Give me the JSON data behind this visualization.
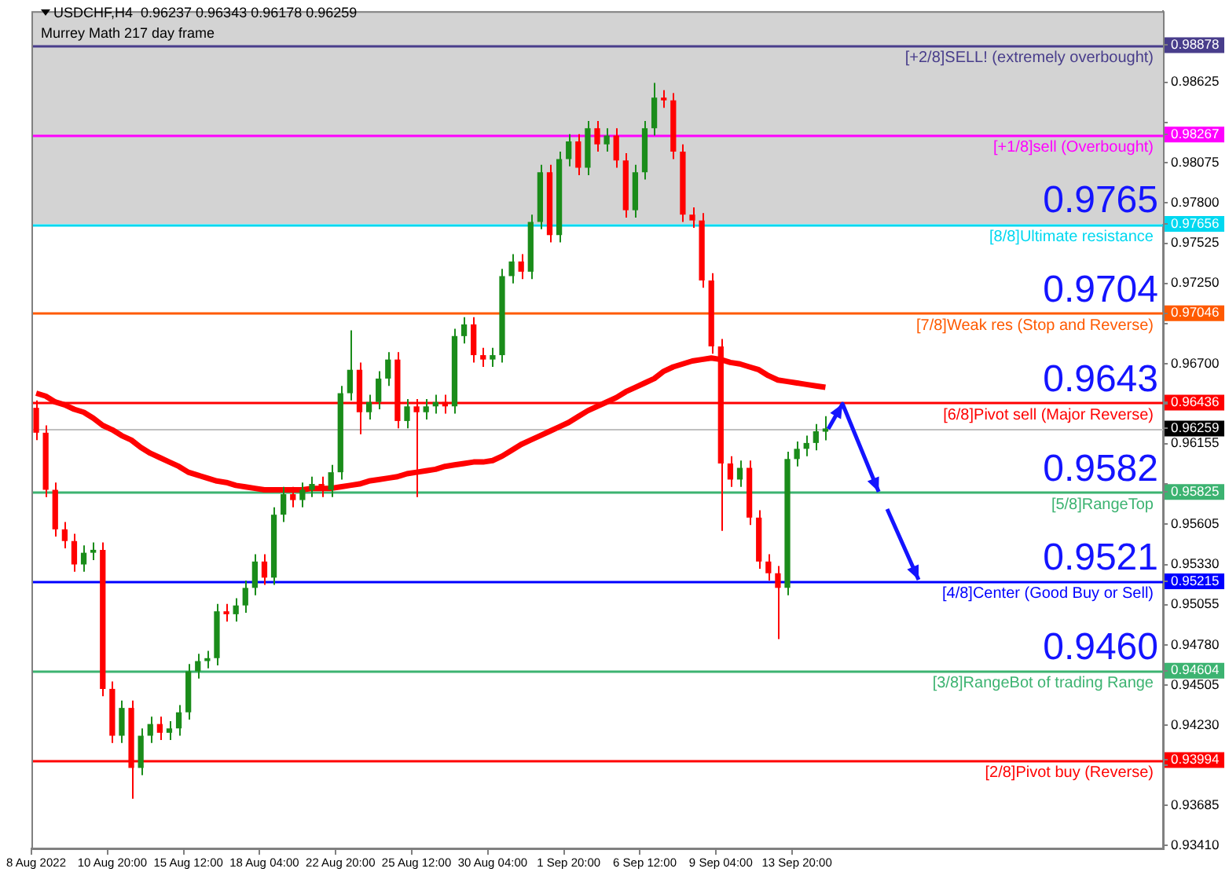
{
  "chart_data": {
    "type": "candlestick",
    "title": "USDCHF,H4  0.96237 0.96343 0.96178 0.96259",
    "subtitle": "Murrey Math 217 day frame",
    "categories": [
      "8 Aug 2022",
      null,
      null,
      null,
      null,
      null,
      null,
      null,
      "10 Aug 20:00",
      null,
      null,
      null,
      null,
      null,
      null,
      null,
      "15 Aug 12:00",
      null,
      null,
      null,
      null,
      null,
      null,
      null,
      "18 Aug 04:00",
      null,
      null,
      null,
      null,
      null,
      null,
      null,
      "22 Aug 20:00",
      null,
      null,
      null,
      null,
      null,
      null,
      null,
      "25 Aug 12:00",
      null,
      null,
      null,
      null,
      null,
      null,
      null,
      "30 Aug 04:00",
      null,
      null,
      null,
      null,
      null,
      null,
      null,
      "1 Sep 20:00",
      null,
      null,
      null,
      null,
      null,
      null,
      null,
      "6 Sep 12:00",
      null,
      null,
      null,
      null,
      null,
      null,
      null,
      "9 Sep 04:00",
      null,
      null,
      null,
      null,
      null,
      null,
      null,
      "13 Sep 20:00",
      null,
      null,
      null,
      null,
      null,
      null,
      null,
      null,
      null,
      null,
      null,
      null,
      null,
      null,
      null,
      null,
      null,
      null,
      null,
      null,
      null,
      null,
      null,
      null,
      null,
      null,
      null,
      null,
      null,
      null,
      null,
      null,
      null,
      null,
      null,
      null,
      null,
      null
    ],
    "ohlc": [
      [
        0.964,
        0.9645,
        0.9618,
        0.9623
      ],
      [
        0.9623,
        0.9628,
        0.9579,
        0.9584
      ],
      [
        0.9584,
        0.9589,
        0.9552,
        0.9557
      ],
      [
        0.9557,
        0.9562,
        0.9544,
        0.9549
      ],
      [
        0.9549,
        0.9554,
        0.9528,
        0.9533
      ],
      [
        0.9533,
        0.9546,
        0.9528,
        0.9541
      ],
      [
        0.9541,
        0.9548,
        0.9536,
        0.9543
      ],
      [
        0.9543,
        0.9548,
        0.9443,
        0.9448
      ],
      [
        0.9448,
        0.9453,
        0.9411,
        0.9416
      ],
      [
        0.9416,
        0.944,
        0.9411,
        0.9435
      ],
      [
        0.9435,
        0.944,
        0.9373,
        0.9394
      ],
      [
        0.9394,
        0.9421,
        0.9389,
        0.9416
      ],
      [
        0.9416,
        0.9429,
        0.9411,
        0.9424
      ],
      [
        0.9424,
        0.9429,
        0.9413,
        0.9418
      ],
      [
        0.9418,
        0.9426,
        0.9413,
        0.9421
      ],
      [
        0.9421,
        0.9437,
        0.9416,
        0.9432
      ],
      [
        0.9432,
        0.9465,
        0.9427,
        0.946
      ],
      [
        0.946,
        0.9472,
        0.9455,
        0.9467
      ],
      [
        0.9467,
        0.9474,
        0.9462,
        0.9469
      ],
      [
        0.9469,
        0.9506,
        0.9464,
        0.9501
      ],
      [
        0.9501,
        0.9506,
        0.9494,
        0.9499
      ],
      [
        0.9499,
        0.951,
        0.9494,
        0.9505
      ],
      [
        0.9505,
        0.9522,
        0.95,
        0.9517
      ],
      [
        0.9517,
        0.954,
        0.9512,
        0.9535
      ],
      [
        0.9535,
        0.954,
        0.9519,
        0.9524
      ],
      [
        0.9524,
        0.9572,
        0.9519,
        0.9567
      ],
      [
        0.9567,
        0.9586,
        0.9562,
        0.9581
      ],
      [
        0.9581,
        0.9586,
        0.9572,
        0.9577
      ],
      [
        0.9577,
        0.9589,
        0.9572,
        0.9584
      ],
      [
        0.9584,
        0.9593,
        0.9579,
        0.9588
      ],
      [
        0.9588,
        0.9593,
        0.9579,
        0.9584
      ],
      [
        0.9584,
        0.9601,
        0.9579,
        0.9596
      ],
      [
        0.9596,
        0.9655,
        0.9591,
        0.965
      ],
      [
        0.965,
        0.9693,
        0.9645,
        0.9666
      ],
      [
        0.9666,
        0.9671,
        0.9622,
        0.9637
      ],
      [
        0.9637,
        0.9649,
        0.9632,
        0.9644
      ],
      [
        0.9644,
        0.9665,
        0.9639,
        0.966
      ],
      [
        0.966,
        0.9678,
        0.9655,
        0.9673
      ],
      [
        0.9673,
        0.9678,
        0.9626,
        0.9631
      ],
      [
        0.9631,
        0.9646,
        0.9626,
        0.9641
      ],
      [
        0.9641,
        0.9646,
        0.9579,
        0.9637
      ],
      [
        0.9637,
        0.9646,
        0.9632,
        0.9641
      ],
      [
        0.9641,
        0.9649,
        0.9636,
        0.9644
      ],
      [
        0.9644,
        0.9649,
        0.9636,
        0.9641
      ],
      [
        0.9641,
        0.9694,
        0.9636,
        0.9689
      ],
      [
        0.9689,
        0.9702,
        0.9684,
        0.9697
      ],
      [
        0.9697,
        0.9702,
        0.9671,
        0.9676
      ],
      [
        0.9676,
        0.9681,
        0.9668,
        0.9673
      ],
      [
        0.9673,
        0.9681,
        0.9668,
        0.9676
      ],
      [
        0.9676,
        0.9735,
        0.9671,
        0.973
      ],
      [
        0.973,
        0.9745,
        0.9725,
        0.974
      ],
      [
        0.974,
        0.9745,
        0.9728,
        0.9733
      ],
      [
        0.9733,
        0.9772,
        0.9728,
        0.9767
      ],
      [
        0.9767,
        0.9806,
        0.9762,
        0.9801
      ],
      [
        0.9801,
        0.9806,
        0.9753,
        0.9758
      ],
      [
        0.9758,
        0.9815,
        0.9753,
        0.981
      ],
      [
        0.981,
        0.9827,
        0.9805,
        0.9822
      ],
      [
        0.9822,
        0.9827,
        0.9799,
        0.9804
      ],
      [
        0.9804,
        0.9836,
        0.9799,
        0.9831
      ],
      [
        0.9831,
        0.9836,
        0.9815,
        0.982
      ],
      [
        0.982,
        0.9831,
        0.9815,
        0.9826
      ],
      [
        0.9826,
        0.9831,
        0.9804,
        0.9809
      ],
      [
        0.9809,
        0.9814,
        0.977,
        0.9775
      ],
      [
        0.9775,
        0.9806,
        0.977,
        0.9801
      ],
      [
        0.9801,
        0.9836,
        0.9796,
        0.9831
      ],
      [
        0.9831,
        0.9862,
        0.9826,
        0.9852
      ],
      [
        0.9852,
        0.9857,
        0.9845,
        0.985
      ],
      [
        0.985,
        0.9855,
        0.981,
        0.9815
      ],
      [
        0.9815,
        0.982,
        0.9767,
        0.9772
      ],
      [
        0.9772,
        0.9777,
        0.9763,
        0.9768
      ],
      [
        0.9768,
        0.9773,
        0.9722,
        0.9727
      ],
      [
        0.9727,
        0.9732,
        0.9677,
        0.9682
      ],
      [
        0.9682,
        0.9687,
        0.9556,
        0.9602
      ],
      [
        0.9602,
        0.9607,
        0.9586,
        0.9591
      ],
      [
        0.9591,
        0.9604,
        0.9586,
        0.9599
      ],
      [
        0.9599,
        0.9604,
        0.956,
        0.9565
      ],
      [
        0.9565,
        0.957,
        0.953,
        0.9535
      ],
      [
        0.9535,
        0.954,
        0.9522,
        0.9527
      ],
      [
        0.9527,
        0.9532,
        0.9482,
        0.9517
      ],
      [
        0.9517,
        0.961,
        0.9512,
        0.9605
      ],
      [
        0.9605,
        0.9617,
        0.96,
        0.9612
      ],
      [
        0.9612,
        0.9621,
        0.9607,
        0.9616
      ],
      [
        0.9616,
        0.9629,
        0.9611,
        0.9624
      ],
      [
        0.96237,
        0.96343,
        0.96178,
        0.96259
      ],
      null,
      null,
      null,
      null,
      null,
      null,
      null,
      null,
      null,
      null,
      null,
      null,
      null,
      null,
      null,
      null,
      null,
      null,
      null,
      null,
      null,
      null,
      null,
      null,
      null,
      null,
      null,
      null,
      null,
      null,
      null,
      null,
      null,
      null,
      null
    ],
    "colors": [
      "#ff0000",
      "#ff0000",
      "#ff0000",
      "#ff0000",
      "#ff0000",
      "#1a8c1a",
      "#1a8c1a",
      "#ff0000",
      "#ff0000",
      "#1a8c1a",
      "#ff0000",
      "#1a8c1a",
      "#1a8c1a",
      "#ff0000",
      "#1a8c1a",
      "#1a8c1a",
      "#1a8c1a",
      "#1a8c1a",
      "#1a8c1a",
      "#1a8c1a",
      "#ff0000",
      "#1a8c1a",
      "#1a8c1a",
      "#1a8c1a",
      "#ff0000",
      "#1a8c1a",
      "#1a8c1a",
      "#ff0000",
      "#1a8c1a",
      "#1a8c1a",
      "#ff0000",
      "#1a8c1a",
      "#1a8c1a",
      "#1a8c1a",
      "#ff0000",
      "#1a8c1a",
      "#1a8c1a",
      "#1a8c1a",
      "#ff0000",
      "#1a8c1a",
      "#ff0000",
      "#1a8c1a",
      "#1a8c1a",
      "#ff0000",
      "#1a8c1a",
      "#1a8c1a",
      "#ff0000",
      "#ff0000",
      "#1a8c1a",
      "#1a8c1a",
      "#1a8c1a",
      "#ff0000",
      "#1a8c1a",
      "#1a8c1a",
      "#ff0000",
      "#1a8c1a",
      "#1a8c1a",
      "#ff0000",
      "#1a8c1a",
      "#ff0000",
      "#1a8c1a",
      "#ff0000",
      "#ff0000",
      "#1a8c1a",
      "#1a8c1a",
      "#1a8c1a",
      "#ff0000",
      "#ff0000",
      "#ff0000",
      "#ff0000",
      "#ff0000",
      "#ff0000",
      "#ff0000",
      "#ff0000",
      "#1a8c1a",
      "#ff0000",
      "#ff0000",
      "#ff0000",
      "#ff0000",
      "#1a8c1a",
      "#1a8c1a",
      "#1a8c1a",
      "#1a8c1a",
      "#1a8c1a",
      null,
      null,
      null,
      null,
      null,
      null,
      null,
      null,
      null,
      null,
      null,
      null,
      null,
      null,
      null,
      null,
      null,
      null,
      null,
      null,
      null,
      null,
      null,
      null,
      null,
      null,
      null,
      null,
      null,
      null,
      null,
      null,
      null,
      null,
      null
    ],
    "series": [
      {
        "type": "line",
        "color": "#ff0000",
        "values": [
          0.965,
          0.9648,
          0.9644,
          0.9642,
          0.9639,
          0.9637,
          0.9633,
          0.9628,
          0.9625,
          0.9621,
          0.9618,
          0.9613,
          0.9609,
          0.9606,
          0.9603,
          0.96,
          0.9596,
          0.9594,
          0.9592,
          0.959,
          0.9589,
          0.9587,
          0.9586,
          0.9585,
          0.9584,
          0.9584,
          0.9584,
          0.9584,
          0.9584,
          0.9585,
          0.9585,
          0.9585,
          0.9586,
          0.9587,
          0.9588,
          0.959,
          0.9591,
          0.9592,
          0.9593,
          0.9595,
          0.9596,
          0.9597,
          0.9598,
          0.96,
          0.9601,
          0.9602,
          0.9603,
          0.9603,
          0.9604,
          0.9607,
          0.9611,
          0.9615,
          0.9618,
          0.9621,
          0.9624,
          0.9627,
          0.963,
          0.9634,
          0.9638,
          0.9641,
          0.9644,
          0.9647,
          0.9651,
          0.9654,
          0.9657,
          0.966,
          0.9665,
          0.9668,
          0.967,
          0.9672,
          0.9673,
          0.9674,
          0.9673,
          0.9671,
          0.967,
          0.9668,
          0.9666,
          0.9662,
          0.9659,
          0.9658,
          0.9657,
          0.9656,
          0.9655,
          0.9654,
          null,
          null,
          null,
          null,
          null,
          null,
          null,
          null,
          null,
          null,
          null,
          null,
          null,
          null,
          null,
          null,
          null,
          null,
          null,
          null,
          null,
          null,
          null,
          null,
          null,
          null,
          null,
          null,
          null,
          null,
          null,
          null,
          null,
          null,
          null
        ]
      }
    ],
    "ylim": [
      0.9339,
      0.9911
    ],
    "yticks": [
      {
        "value": 0.9341,
        "label": "0.93410"
      },
      {
        "value": 0.93685,
        "label": "0.93685"
      },
      {
        "value": 0.9396,
        "label": null
      },
      {
        "value": 0.93994,
        "label": "0.93994"
      },
      {
        "value": 0.9423,
        "label": "0.94230"
      },
      {
        "value": 0.94505,
        "label": "0.94505"
      },
      {
        "value": 0.94604,
        "label": "0.94604"
      },
      {
        "value": 0.9478,
        "label": "0.94780"
      },
      {
        "value": 0.95055,
        "label": "0.95055"
      },
      {
        "value": 0.95215,
        "label": "0.95215"
      },
      {
        "value": 0.9533,
        "label": "0.95330"
      },
      {
        "value": 0.95605,
        "label": "0.95605"
      },
      {
        "value": 0.95825,
        "label": "0.95825"
      },
      {
        "value": 0.9588,
        "label": null
      },
      {
        "value": 0.96155,
        "label": "0.96155"
      },
      {
        "value": 0.96259,
        "label": "0.96259"
      },
      {
        "value": 0.9643,
        "label": null
      },
      {
        "value": 0.96436,
        "label": "0.96436"
      },
      {
        "value": 0.967,
        "label": "0.96700"
      },
      {
        "value": 0.96975,
        "label": null
      },
      {
        "value": 0.97046,
        "label": "0.97046"
      },
      {
        "value": 0.9725,
        "label": "0.97250"
      },
      {
        "value": 0.97525,
        "label": "0.97525"
      },
      {
        "value": 0.97656,
        "label": "0.97656"
      },
      {
        "value": 0.978,
        "label": "0.97800"
      },
      {
        "value": 0.98075,
        "label": "0.98075"
      },
      {
        "value": 0.98267,
        "label": "0.98267"
      },
      {
        "value": 0.9835,
        "label": null
      },
      {
        "value": 0.98625,
        "label": "0.98625"
      },
      {
        "value": 0.98878,
        "label": "0.98878"
      }
    ],
    "grid": false,
    "bands": [
      {
        "axis": "y",
        "from": 0.97656,
        "to": 0.9911,
        "color": "#d3d3d3"
      }
    ],
    "ref_lines": [
      {
        "axis": "y",
        "value": 0.98878,
        "label": "[+2/8]SELL! (extremely overbought)",
        "color": "#483d8b"
      },
      {
        "axis": "y",
        "value": 0.98267,
        "label": "[+1/8]sell (Overbought)",
        "color": "#ff00ff"
      },
      {
        "axis": "y",
        "value": 0.97656,
        "label": "[8/8]Ultimate resistance",
        "color": "#00d8f0"
      },
      {
        "axis": "y",
        "value": 0.97046,
        "label": "[7/8]Weak res (Stop and Reverse)",
        "color": "#ff5a00"
      },
      {
        "axis": "y",
        "value": 0.96436,
        "label": "[6/8]Pivot sell (Major Reverse)",
        "color": "#ff0000"
      },
      {
        "axis": "y",
        "value": 0.95825,
        "label": "[5/8]RangeTop",
        "color": "#3cb371"
      },
      {
        "axis": "y",
        "value": 0.95215,
        "label": "[4/8]Center (Good Buy or Sell)",
        "color": "#0000ff"
      },
      {
        "axis": "y",
        "value": 0.94604,
        "label": "[3/8]RangeBot of trading Range",
        "color": "#3cb371"
      },
      {
        "axis": "y",
        "value": 0.93994,
        "label": "[2/8]Pivot buy (Reverse)",
        "color": "#ff0000"
      },
      {
        "axis": "y",
        "value": 0.96259,
        "color": "#c0c0c0"
      }
    ],
    "annotations": [
      {
        "text": "0.9765",
        "y": 0.97656
      },
      {
        "text": "0.9704",
        "y": 0.97046
      },
      {
        "text": "0.9643",
        "y": 0.96436
      },
      {
        "text": "0.9582",
        "y": 0.95825
      },
      {
        "text": "0.9521",
        "y": 0.95215
      },
      {
        "text": "0.9460",
        "y": 0.94604
      }
    ]
  }
}
